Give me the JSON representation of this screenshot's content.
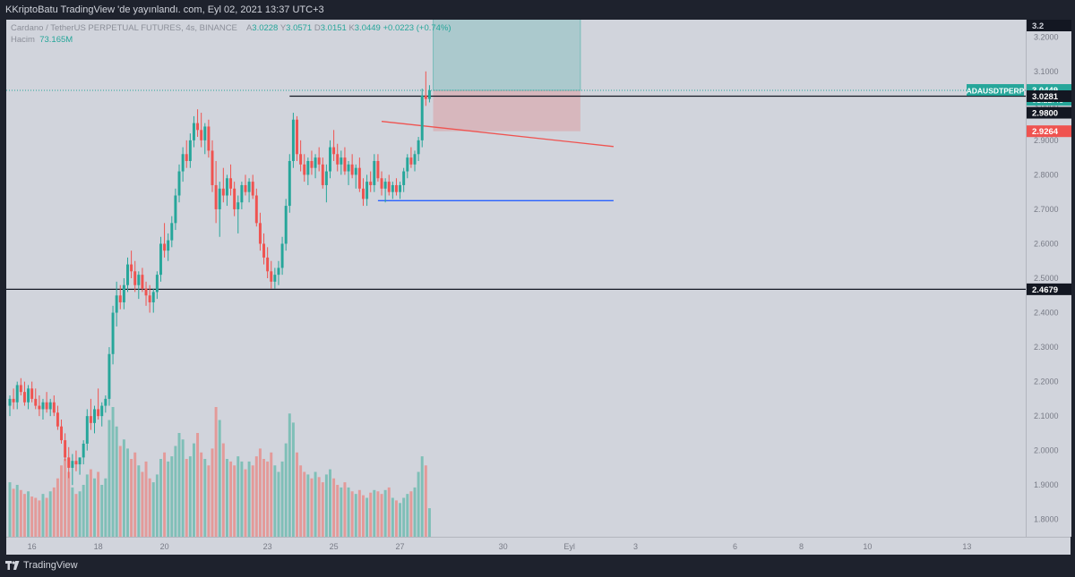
{
  "header": {
    "published": "KKriptoBatu TradingView 'de yayınlandı. com, Eyl 02, 2021 13:37 UTC+3"
  },
  "legend": {
    "symbol": "Cardano / TetherUS PERPETUAL FUTURES, 4s, BINANCE",
    "open_label": "A",
    "open": "3.0228",
    "high_label": "Y",
    "high": "3.0571",
    "low_label": "D",
    "low": "3.0151",
    "close_label": "K",
    "close": "3.0449",
    "change": "+0.0223 (+0.74%)",
    "volume_label": "Hacim",
    "volume": "73.165M"
  },
  "footer": {
    "brand": "TradingView"
  },
  "price_axis": {
    "currency": "USDT",
    "current_symbol": "ADAUSDTPERP",
    "current_price": "3.0449",
    "countdown": "01:22:46",
    "top_badge": "3.2",
    "labels": [
      {
        "value": "3.0281",
        "style": "dark"
      },
      {
        "value": "2.9800",
        "style": "dark"
      },
      {
        "value": "2.9264",
        "style": "red"
      },
      {
        "value": "2.4679",
        "style": "dark"
      }
    ]
  },
  "colors": {
    "up": "#26a69a",
    "down": "#ef5350",
    "up_volume": "#7fbfb7",
    "down_volume": "#e39a99",
    "chart_bg": "#d1d4dc",
    "toolbar_bg": "#1e222d",
    "trend_red": "#ef5350",
    "support_blue": "#2962ff",
    "level_black": "#131722"
  },
  "chart_data": {
    "type": "candlestick",
    "symbol": "ADAUSDTPERP",
    "timeframe": "4s",
    "y_range": [
      1.75,
      3.25
    ],
    "y_ticks": [
      "3.2000",
      "3.1000",
      "3.0000",
      "2.9000",
      "2.8000",
      "2.7000",
      "2.6000",
      "2.5000",
      "2.4000",
      "2.3000",
      "2.2000",
      "2.1000",
      "2.0000",
      "1.9000",
      "1.8000"
    ],
    "x_range": [
      0,
      275
    ],
    "x_ticks": [
      {
        "label": "16",
        "bar": 6
      },
      {
        "label": "18",
        "bar": 24
      },
      {
        "label": "20",
        "bar": 42
      },
      {
        "label": "23",
        "bar": 70
      },
      {
        "label": "25",
        "bar": 88
      },
      {
        "label": "27",
        "bar": 106
      },
      {
        "label": "30",
        "bar": 134
      },
      {
        "label": "Eyl",
        "bar": 152
      },
      {
        "label": "3",
        "bar": 170
      },
      {
        "label": "6",
        "bar": 197
      },
      {
        "label": "8",
        "bar": 215
      },
      {
        "label": "10",
        "bar": 233
      },
      {
        "label": "13",
        "bar": 260
      }
    ],
    "grid": false,
    "candles": [
      [
        2.13,
        2.16,
        2.1,
        2.15
      ],
      [
        2.15,
        2.18,
        2.12,
        2.14
      ],
      [
        2.14,
        2.2,
        2.12,
        2.19
      ],
      [
        2.19,
        2.21,
        2.16,
        2.17
      ],
      [
        2.17,
        2.2,
        2.13,
        2.14
      ],
      [
        2.14,
        2.19,
        2.12,
        2.18
      ],
      [
        2.18,
        2.2,
        2.14,
        2.15
      ],
      [
        2.15,
        2.18,
        2.12,
        2.13
      ],
      [
        2.13,
        2.16,
        2.1,
        2.12
      ],
      [
        2.12,
        2.15,
        2.09,
        2.14
      ],
      [
        2.14,
        2.17,
        2.11,
        2.12
      ],
      [
        2.12,
        2.15,
        2.1,
        2.14
      ],
      [
        2.14,
        2.16,
        2.1,
        2.11
      ],
      [
        2.11,
        2.13,
        2.06,
        2.07
      ],
      [
        2.07,
        2.09,
        2.02,
        2.03
      ],
      [
        2.03,
        2.05,
        1.97,
        1.98
      ],
      [
        1.98,
        2.01,
        1.92,
        1.95
      ],
      [
        1.95,
        1.99,
        1.9,
        1.97
      ],
      [
        1.97,
        2.0,
        1.94,
        1.96
      ],
      [
        1.96,
        1.98,
        1.93,
        1.98
      ],
      [
        1.98,
        2.03,
        1.96,
        2.02
      ],
      [
        2.02,
        2.12,
        2.0,
        2.1
      ],
      [
        2.1,
        2.15,
        2.06,
        2.08
      ],
      [
        2.08,
        2.13,
        2.05,
        2.12
      ],
      [
        2.12,
        2.18,
        2.09,
        2.1
      ],
      [
        2.1,
        2.14,
        2.07,
        2.13
      ],
      [
        2.13,
        2.16,
        2.11,
        2.15
      ],
      [
        2.15,
        2.3,
        2.13,
        2.28
      ],
      [
        2.28,
        2.42,
        2.25,
        2.4
      ],
      [
        2.4,
        2.49,
        2.36,
        2.45
      ],
      [
        2.45,
        2.48,
        2.41,
        2.43
      ],
      [
        2.43,
        2.5,
        2.41,
        2.48
      ],
      [
        2.48,
        2.56,
        2.46,
        2.54
      ],
      [
        2.54,
        2.58,
        2.5,
        2.52
      ],
      [
        2.52,
        2.55,
        2.46,
        2.48
      ],
      [
        2.48,
        2.52,
        2.44,
        2.51
      ],
      [
        2.51,
        2.53,
        2.46,
        2.47
      ],
      [
        2.47,
        2.49,
        2.42,
        2.45
      ],
      [
        2.45,
        2.48,
        2.4,
        2.43
      ],
      [
        2.43,
        2.47,
        2.4,
        2.46
      ],
      [
        2.46,
        2.52,
        2.44,
        2.51
      ],
      [
        2.51,
        2.62,
        2.49,
        2.6
      ],
      [
        2.6,
        2.66,
        2.56,
        2.58
      ],
      [
        2.58,
        2.63,
        2.55,
        2.61
      ],
      [
        2.61,
        2.68,
        2.59,
        2.66
      ],
      [
        2.66,
        2.76,
        2.64,
        2.74
      ],
      [
        2.74,
        2.83,
        2.72,
        2.81
      ],
      [
        2.81,
        2.88,
        2.78,
        2.86
      ],
      [
        2.86,
        2.9,
        2.82,
        2.84
      ],
      [
        2.84,
        2.92,
        2.82,
        2.9
      ],
      [
        2.9,
        2.97,
        2.88,
        2.95
      ],
      [
        2.95,
        2.99,
        2.91,
        2.93
      ],
      [
        2.93,
        2.98,
        2.88,
        2.9
      ],
      [
        2.9,
        2.95,
        2.86,
        2.94
      ],
      [
        2.94,
        2.96,
        2.85,
        2.87
      ],
      [
        2.87,
        2.9,
        2.75,
        2.77
      ],
      [
        2.77,
        2.84,
        2.66,
        2.7
      ],
      [
        2.7,
        2.78,
        2.62,
        2.76
      ],
      [
        2.76,
        2.82,
        2.72,
        2.74
      ],
      [
        2.74,
        2.8,
        2.71,
        2.79
      ],
      [
        2.79,
        2.83,
        2.74,
        2.76
      ],
      [
        2.76,
        2.78,
        2.68,
        2.7
      ],
      [
        2.7,
        2.74,
        2.63,
        2.72
      ],
      [
        2.72,
        2.78,
        2.7,
        2.77
      ],
      [
        2.77,
        2.8,
        2.74,
        2.75
      ],
      [
        2.75,
        2.79,
        2.72,
        2.78
      ],
      [
        2.78,
        2.8,
        2.73,
        2.74
      ],
      [
        2.74,
        2.76,
        2.65,
        2.66
      ],
      [
        2.66,
        2.69,
        2.58,
        2.6
      ],
      [
        2.6,
        2.63,
        2.54,
        2.56
      ],
      [
        2.56,
        2.59,
        2.5,
        2.52
      ],
      [
        2.52,
        2.55,
        2.47,
        2.49
      ],
      [
        2.49,
        2.53,
        2.47,
        2.51
      ],
      [
        2.51,
        2.55,
        2.48,
        2.53
      ],
      [
        2.53,
        2.62,
        2.51,
        2.6
      ],
      [
        2.6,
        2.73,
        2.58,
        2.71
      ],
      [
        2.71,
        2.86,
        2.69,
        2.84
      ],
      [
        2.84,
        2.98,
        2.82,
        2.96
      ],
      [
        2.96,
        2.97,
        2.84,
        2.86
      ],
      [
        2.86,
        2.9,
        2.81,
        2.83
      ],
      [
        2.83,
        2.86,
        2.78,
        2.8
      ],
      [
        2.8,
        2.85,
        2.77,
        2.84
      ],
      [
        2.84,
        2.87,
        2.8,
        2.82
      ],
      [
        2.82,
        2.86,
        2.79,
        2.85
      ],
      [
        2.85,
        2.88,
        2.81,
        2.83
      ],
      [
        2.83,
        2.85,
        2.76,
        2.77
      ],
      [
        2.77,
        2.83,
        2.72,
        2.81
      ],
      [
        2.81,
        2.9,
        2.79,
        2.88
      ],
      [
        2.88,
        2.93,
        2.84,
        2.86
      ],
      [
        2.86,
        2.89,
        2.81,
        2.83
      ],
      [
        2.83,
        2.87,
        2.8,
        2.85
      ],
      [
        2.85,
        2.88,
        2.8,
        2.81
      ],
      [
        2.81,
        2.84,
        2.77,
        2.83
      ],
      [
        2.83,
        2.86,
        2.79,
        2.8
      ],
      [
        2.8,
        2.83,
        2.76,
        2.82
      ],
      [
        2.82,
        2.85,
        2.75,
        2.76
      ],
      [
        2.76,
        2.79,
        2.71,
        2.73
      ],
      [
        2.73,
        2.8,
        2.71,
        2.78
      ],
      [
        2.78,
        2.81,
        2.75,
        2.77
      ],
      [
        2.77,
        2.86,
        2.75,
        2.84
      ],
      [
        2.84,
        2.86,
        2.78,
        2.79
      ],
      [
        2.79,
        2.81,
        2.74,
        2.76
      ],
      [
        2.76,
        2.79,
        2.72,
        2.78
      ],
      [
        2.78,
        2.8,
        2.74,
        2.75
      ],
      [
        2.75,
        2.78,
        2.73,
        2.77
      ],
      [
        2.77,
        2.79,
        2.74,
        2.75
      ],
      [
        2.75,
        2.78,
        2.73,
        2.77
      ],
      [
        2.77,
        2.82,
        2.75,
        2.81
      ],
      [
        2.81,
        2.86,
        2.79,
        2.85
      ],
      [
        2.85,
        2.88,
        2.82,
        2.83
      ],
      [
        2.83,
        2.87,
        2.81,
        2.86
      ],
      [
        2.86,
        2.91,
        2.84,
        2.9
      ],
      [
        2.9,
        3.05,
        2.88,
        3.03
      ],
      [
        3.03,
        3.1,
        3.0,
        3.02
      ],
      [
        3.02,
        3.06,
        3.01,
        3.045
      ]
    ],
    "volume": [
      42,
      37,
      40,
      36,
      33,
      35,
      31,
      30,
      28,
      33,
      30,
      35,
      38,
      45,
      55,
      60,
      50,
      38,
      33,
      35,
      40,
      48,
      52,
      45,
      50,
      40,
      45,
      90,
      100,
      85,
      70,
      75,
      68,
      60,
      65,
      55,
      50,
      58,
      45,
      42,
      48,
      60,
      65,
      58,
      62,
      70,
      80,
      75,
      60,
      62,
      72,
      80,
      65,
      60,
      55,
      68,
      100,
      90,
      72,
      60,
      58,
      55,
      62,
      58,
      52,
      58,
      55,
      62,
      68,
      60,
      58,
      65,
      55,
      50,
      58,
      72,
      95,
      88,
      65,
      55,
      50,
      48,
      45,
      50,
      46,
      42,
      48,
      52,
      45,
      40,
      38,
      42,
      38,
      35,
      33,
      36,
      32,
      30,
      34,
      36,
      35,
      33,
      36,
      38,
      30,
      28,
      26,
      30,
      33,
      35,
      38,
      50,
      62,
      55,
      22
    ],
    "horizontal_levels": [
      3.0281,
      2.98,
      2.4679
    ],
    "support_line": 2.725,
    "trend_line": [
      [
        101,
        2.955
      ],
      [
        164,
        2.882
      ]
    ],
    "position_tool": {
      "entry": 3.0449,
      "target": 3.257,
      "stop": 2.9264,
      "from_bar": 115,
      "to_bar": 155
    },
    "current_price": 3.0449
  }
}
